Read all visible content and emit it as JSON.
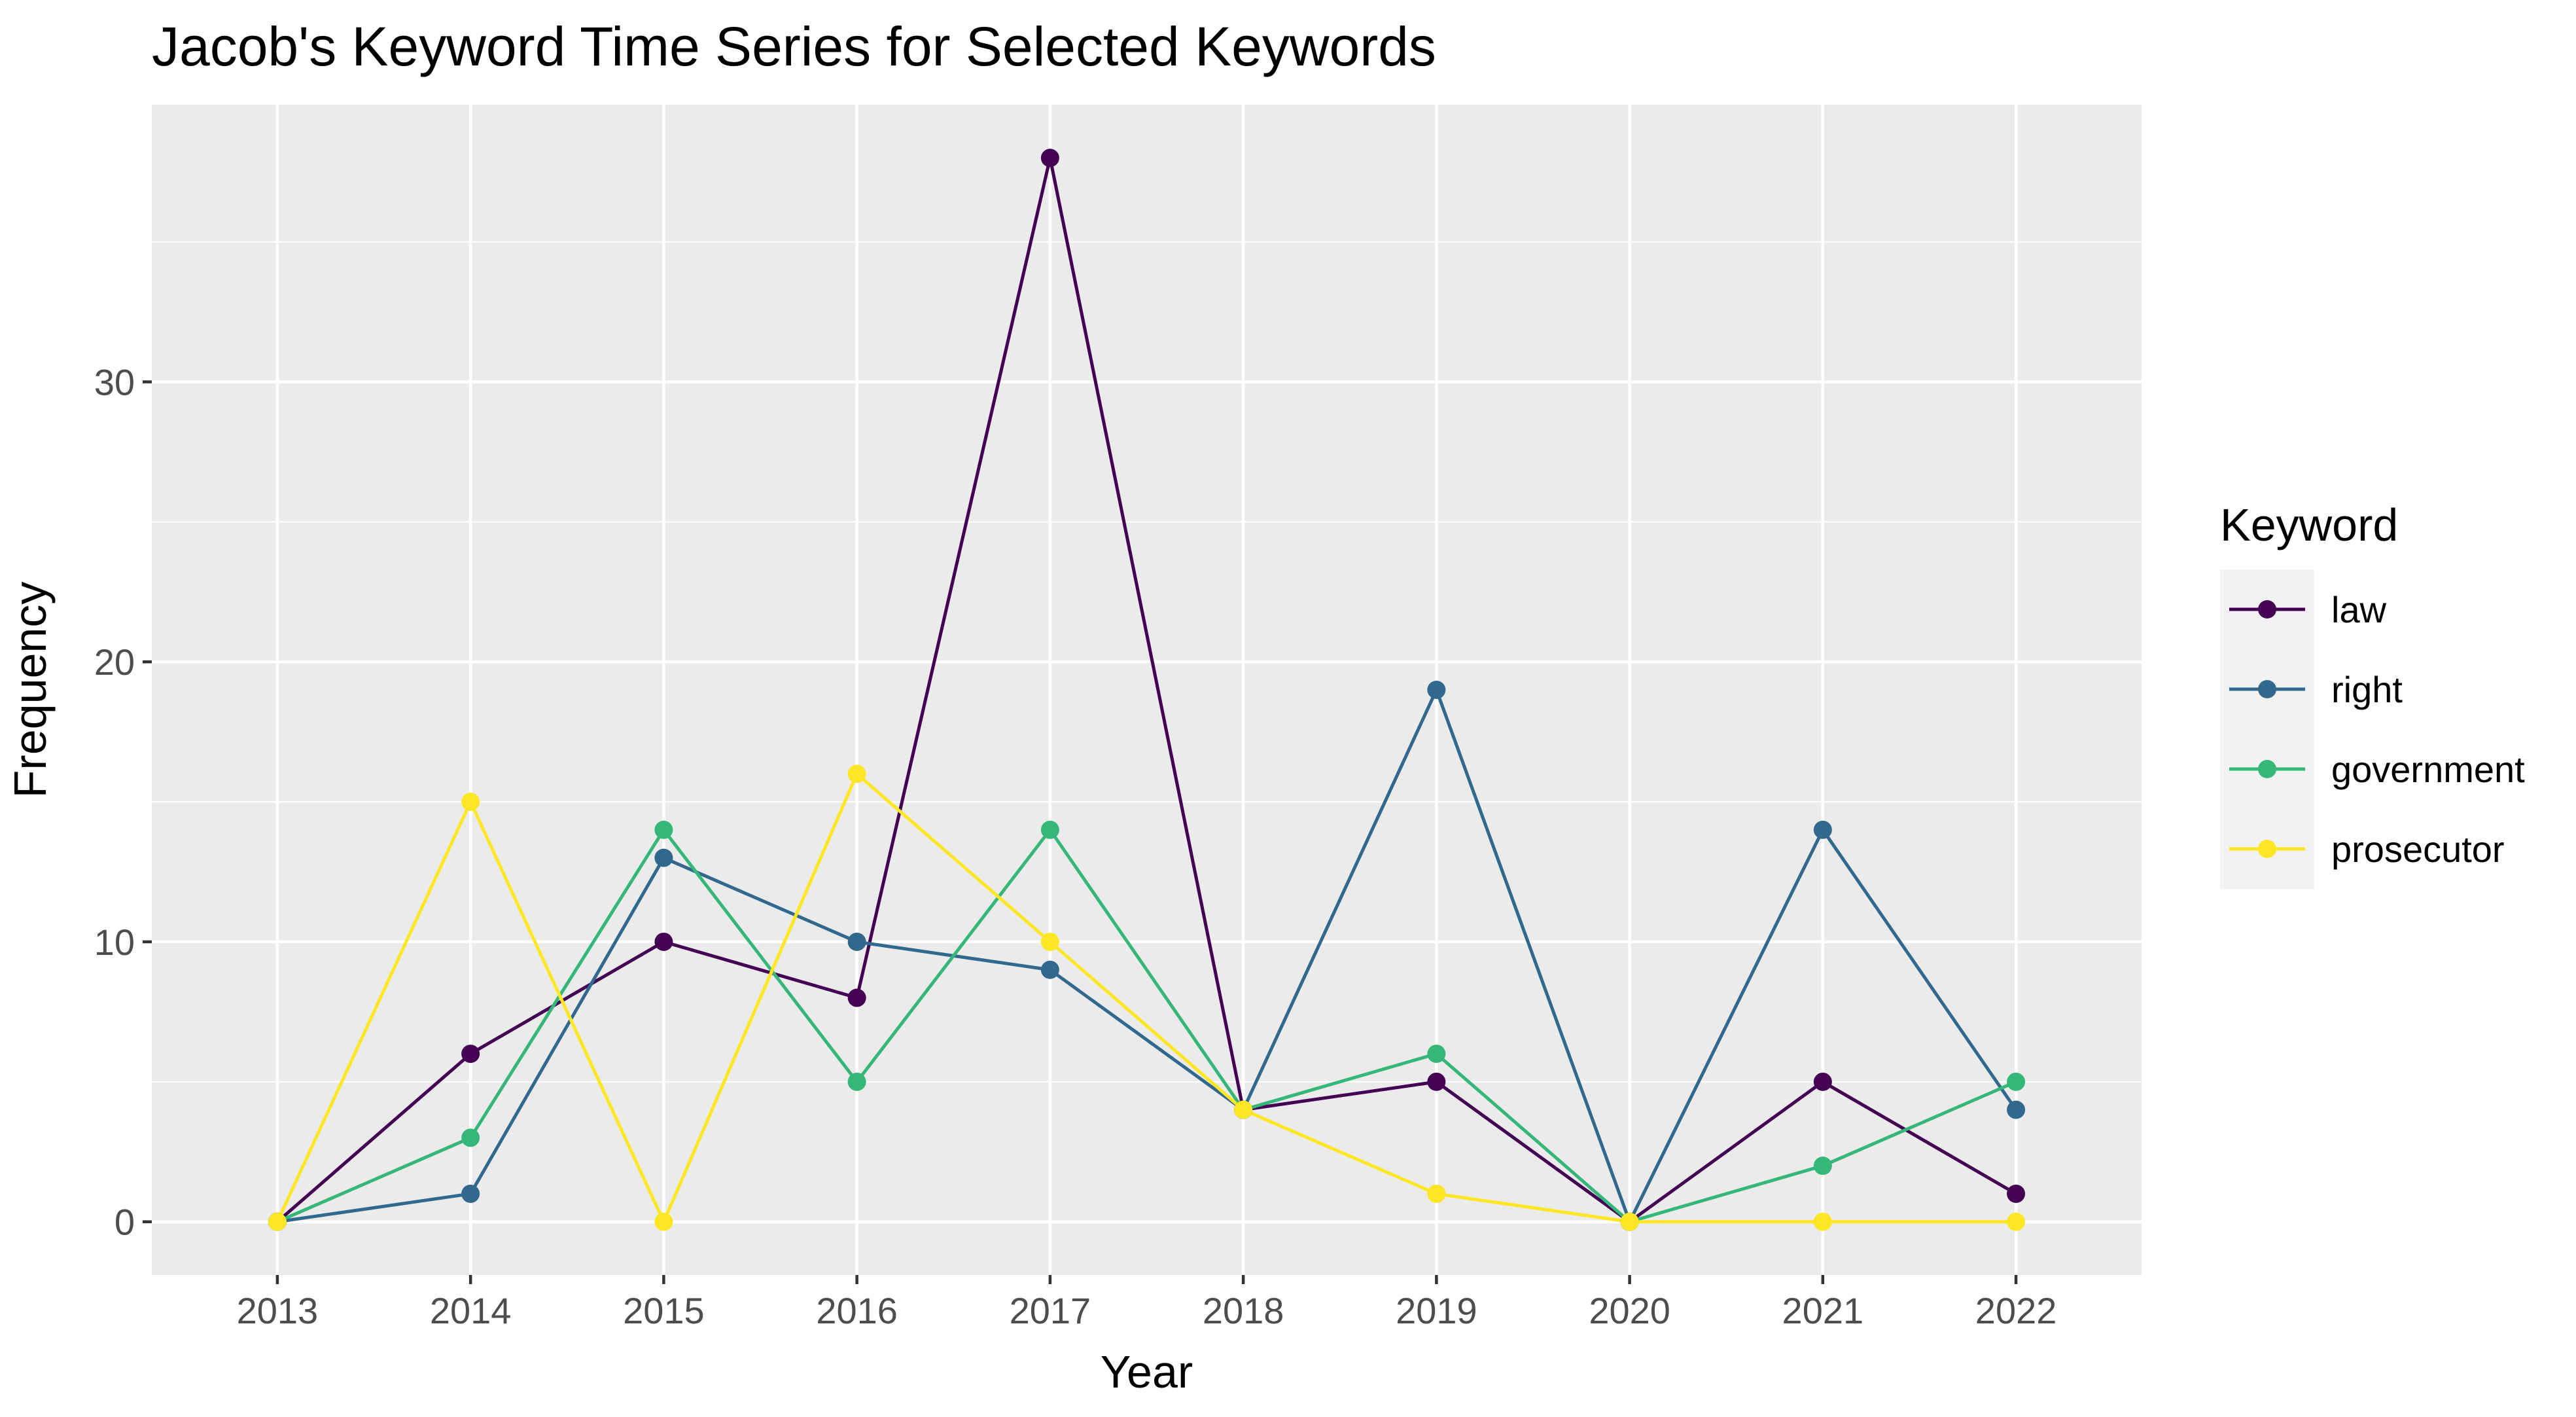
{
  "chart_data": {
    "type": "line",
    "title": "Jacob's Keyword Time Series for Selected Keywords",
    "xlabel": "Year",
    "ylabel": "Frequency",
    "x": [
      2013,
      2014,
      2015,
      2016,
      2017,
      2018,
      2019,
      2020,
      2021,
      2022
    ],
    "x_tick_labels": [
      "2013",
      "2014",
      "2015",
      "2016",
      "2017",
      "2018",
      "2019",
      "2020",
      "2021",
      "2022"
    ],
    "y_ticks": [
      0,
      10,
      20,
      30
    ],
    "y_tick_labels": [
      "0",
      "10",
      "20",
      "30"
    ],
    "xlim": [
      2012.35,
      2022.65
    ],
    "ylim": [
      -1.9,
      39.9
    ],
    "grid": true,
    "legend": {
      "title": "Keyword",
      "placement": "right"
    },
    "series": [
      {
        "name": "law",
        "color": "#440154",
        "values": [
          0,
          6,
          10,
          8,
          38,
          4,
          5,
          0,
          5,
          1
        ]
      },
      {
        "name": "right",
        "color": "#31688E",
        "values": [
          0,
          1,
          13,
          10,
          9,
          4,
          19,
          0,
          14,
          4
        ]
      },
      {
        "name": "government",
        "color": "#35B779",
        "values": [
          0,
          3,
          14,
          5,
          14,
          4,
          6,
          0,
          2,
          5
        ]
      },
      {
        "name": "prosecutor",
        "color": "#FDE725",
        "values": [
          0,
          15,
          0,
          16,
          10,
          4,
          1,
          0,
          0,
          0
        ]
      }
    ],
    "colors": {
      "panel_background": "#EBEBEB",
      "major_grid": "#FFFFFF",
      "legend_key_background": "#F2F2F2"
    }
  }
}
